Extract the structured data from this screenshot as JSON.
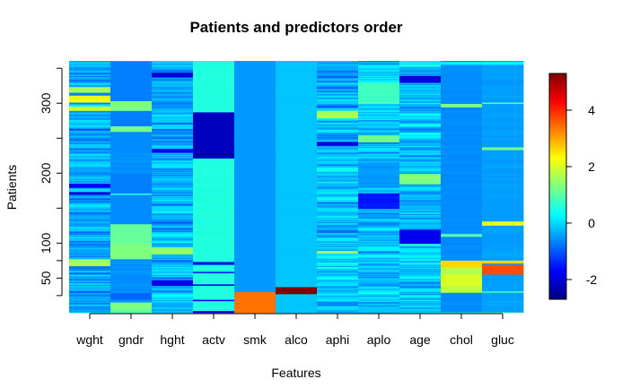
{
  "chart_data": {
    "type": "heatmap",
    "title": "Patients and predictors order",
    "xlabel": "Features",
    "ylabel": "Patients",
    "x_categories": [
      "wght",
      "gndr",
      "hght",
      "actv",
      "smk",
      "alco",
      "aphi",
      "aplo",
      "age",
      "chol",
      "gluc"
    ],
    "y_range": [
      1,
      360
    ],
    "y_ticks": [
      50,
      100,
      200,
      300
    ],
    "y_minor_ticks": [
      25,
      75,
      150,
      250,
      350
    ],
    "colorbar": {
      "range": [
        -2.7,
        5.3
      ],
      "ticks": [
        -2,
        0,
        2,
        4
      ],
      "palette": "jet",
      "stops": [
        "#00007f",
        "#0000ff",
        "#007fff",
        "#00ffff",
        "#7fff7f",
        "#ffff00",
        "#ff7f00",
        "#ff0000",
        "#7f0000"
      ]
    },
    "columns": [
      {
        "name": "wght",
        "base": -0.4,
        "noise": 0.9,
        "bands": [
          [
            68,
            78,
            1.6
          ],
          [
            290,
            296,
            1.9
          ],
          [
            302,
            312,
            2.2
          ],
          [
            316,
            324,
            1.5
          ],
          [
            180,
            186,
            -1.8
          ],
          [
            170,
            174,
            -2.1
          ]
        ]
      },
      {
        "name": "gndr",
        "base": -0.55,
        "noise": 0.15,
        "bands": [
          [
            1,
            6,
            1.0
          ],
          [
            6,
            16,
            1.3
          ],
          [
            20,
            30,
            -0.9
          ],
          [
            42,
            56,
            -0.6
          ],
          [
            78,
            100,
            1.3
          ],
          [
            100,
            128,
            1.1
          ],
          [
            128,
            170,
            -0.6
          ],
          [
            170,
            172,
            0.6
          ],
          [
            172,
            200,
            -0.7
          ],
          [
            230,
            260,
            -0.6
          ],
          [
            260,
            268,
            1.2
          ],
          [
            268,
            290,
            -0.7
          ],
          [
            290,
            304,
            1.3
          ],
          [
            304,
            360,
            -0.7
          ]
        ]
      },
      {
        "name": "hght",
        "base": -0.3,
        "noise": 0.9,
        "bands": [
          [
            85,
            95,
            1.4
          ],
          [
            40,
            48,
            -1.9
          ],
          [
            230,
            236,
            -1.6
          ],
          [
            338,
            345,
            -2.0
          ]
        ]
      },
      {
        "name": "actv",
        "base": 0.55,
        "noise": 0.05,
        "bands": [
          [
            1,
            4,
            -1.9
          ],
          [
            18,
            20,
            -1.7
          ],
          [
            40,
            42,
            -1.8
          ],
          [
            58,
            60,
            -1.6
          ],
          [
            70,
            74,
            -1.9
          ],
          [
            222,
            288,
            -2.2
          ],
          [
            226,
            230,
            -2.4
          ]
        ]
      },
      {
        "name": "smk",
        "base": -0.5,
        "noise": 0.0,
        "bands": [
          [
            1,
            31,
            3.4
          ]
        ]
      },
      {
        "name": "alco",
        "base": -0.15,
        "noise": 0.0,
        "bands": [
          [
            28,
            38,
            5.3
          ]
        ]
      },
      {
        "name": "aphi",
        "base": -0.2,
        "noise": 1.0,
        "bands": [
          [
            280,
            290,
            1.7
          ],
          [
            240,
            246,
            -1.9
          ],
          [
            86,
            90,
            1.5
          ]
        ]
      },
      {
        "name": "aplo",
        "base": -0.2,
        "noise": 0.9,
        "bands": [
          [
            150,
            172,
            -1.5
          ],
          [
            180,
            216,
            -0.5
          ],
          [
            300,
            330,
            0.8
          ],
          [
            245,
            255,
            1.2
          ]
        ]
      },
      {
        "name": "age",
        "base": -0.2,
        "noise": 1.0,
        "bands": [
          [
            100,
            120,
            -1.8
          ],
          [
            185,
            200,
            1.3
          ],
          [
            330,
            340,
            -2.0
          ]
        ]
      },
      {
        "name": "chol",
        "base": -0.6,
        "noise": 0.1,
        "bands": [
          [
            1,
            2,
            0.6
          ],
          [
            30,
            40,
            1.8
          ],
          [
            40,
            56,
            2.0
          ],
          [
            56,
            66,
            1.7
          ],
          [
            66,
            76,
            2.6
          ],
          [
            110,
            114,
            1.0
          ],
          [
            295,
            300,
            1.3
          ],
          [
            356,
            360,
            0.3
          ]
        ]
      },
      {
        "name": "gluc",
        "base": -0.45,
        "noise": 0.1,
        "bands": [
          [
            1,
            2,
            1.0
          ],
          [
            30,
            32,
            0.8
          ],
          [
            56,
            70,
            3.7
          ],
          [
            72,
            76,
            2.6
          ],
          [
            126,
            132,
            2.1
          ],
          [
            234,
            238,
            1.2
          ],
          [
            300,
            302,
            0.9
          ],
          [
            356,
            360,
            0.3
          ]
        ]
      }
    ]
  }
}
